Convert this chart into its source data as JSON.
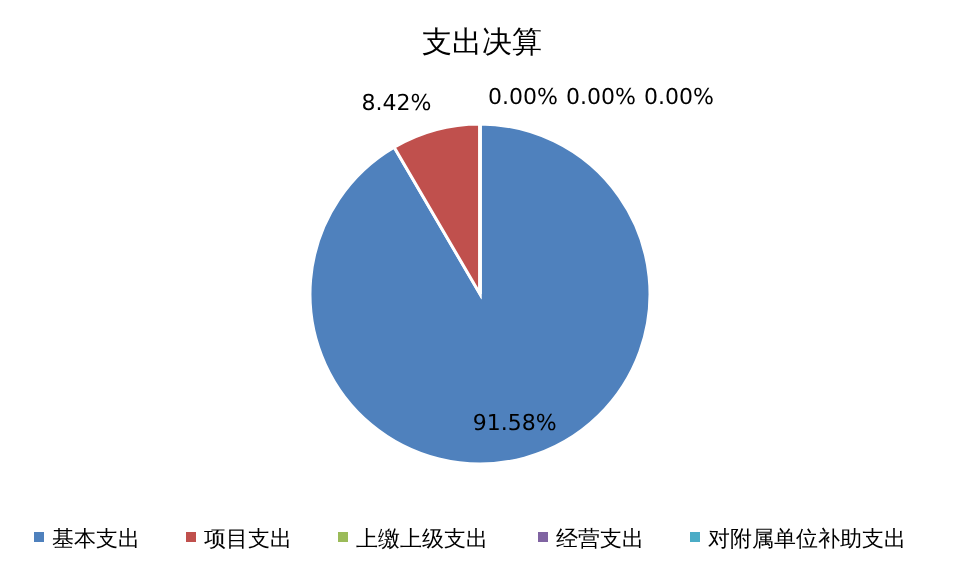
{
  "chart_data": {
    "type": "pie",
    "title": "支出决算",
    "categories": [
      "基本支出",
      "项目支出",
      "上缴上级支出",
      "经营支出",
      "对附属单位补助支出"
    ],
    "values": [
      91.58,
      8.42,
      0,
      0,
      0
    ],
    "colors": [
      "#4f81bd",
      "#c0504d",
      "#9bbb59",
      "#8064a2",
      "#4bacc6"
    ],
    "value_labels": [
      "91.58%",
      "8.42%",
      "0.00%",
      "0.00%",
      "0.00%"
    ],
    "legend": "bottom"
  }
}
